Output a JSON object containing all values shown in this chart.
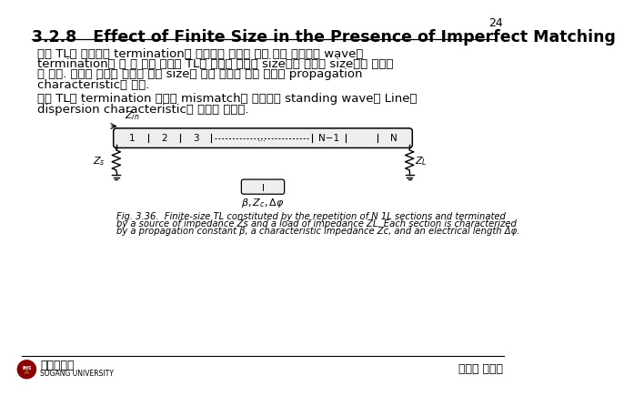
{
  "page_number": "24",
  "title": "3.2.8   Effect of Finite Size in the Presence of Imperfect Matching",
  "bg_color": "#ffffff",
  "title_color": "#000000",
  "title_fontsize": 12.5,
  "para1_line1": "만일 TL이 완벽하게 termination에 매칭되어 있다면 이를 따라 진행하는 wave는",
  "para1_line2": "termination을 볼 수 없고 따라서 TL의 구조가 유한한 size인지 무한한 size인지 구분할",
  "para1_line3": "수 없다. 따라서 완벽히 매칭된 유한 size의 주기 구조는 무한 주기의 propagation",
  "para1_line4": "characteristic과 같다.",
  "para2_line1": "만일 TL과 termination 사이에 mismatch가 존재하면 standing wave는 Line의",
  "para2_line2": "dispersion characteristic에 영향을 받는다.",
  "fig_caption_line1": "Fig. 3.36.  Finite-size TL constituted by the repetition of N 1L sections and terminated",
  "fig_caption_line2": "by a source of impedance Zs and a load of impedance ZL. Each section is characterized",
  "fig_caption_line3": "by a propagation constant β, a characteristic impedance Zc, and an electrical length Δφ.",
  "footer_university": "서강대학교",
  "footer_university_en": "SOGANG UNIVERSITY",
  "footer_right": "전자파 연구실",
  "text_color": "#000000",
  "text_fontsize": 9.5,
  "caption_fontsize": 7.2
}
